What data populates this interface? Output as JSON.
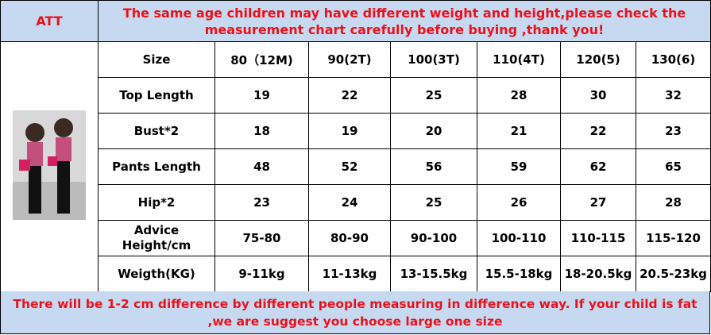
{
  "header": {
    "brand": "ATT",
    "notice": "The same age children may have different weight and height,please check the measurement chart carefully before buying ,thank you!"
  },
  "table": {
    "columns": [
      "Size",
      "80（12M)",
      "90(2T)",
      "100(3T)",
      "110(4T)",
      "120(5)",
      "130(6)"
    ],
    "rows": [
      [
        "Top Length",
        "19",
        "22",
        "25",
        "28",
        "30",
        "32"
      ],
      [
        "Bust*2",
        "18",
        "19",
        "20",
        "21",
        "22",
        "23"
      ],
      [
        "Pants Length",
        "48",
        "52",
        "56",
        "59",
        "62",
        "65"
      ],
      [
        "Hip*2",
        "23",
        "24",
        "25",
        "26",
        "27",
        "28"
      ],
      [
        "Advice Height/cm",
        "75-80",
        "80-90",
        "90-100",
        "100-110",
        "110-115",
        "115-120"
      ],
      [
        "Weigth(KG)",
        "9-11kg",
        "11-13kg",
        "13-15.5kg",
        "15.5-18kg",
        "18-20.5kg",
        "20.5-23kg"
      ]
    ]
  },
  "footer": {
    "note": "There will be 1-2 cm difference by different people measuring in difference way. If your child is fat ,we are suggest you choose large one size"
  }
}
